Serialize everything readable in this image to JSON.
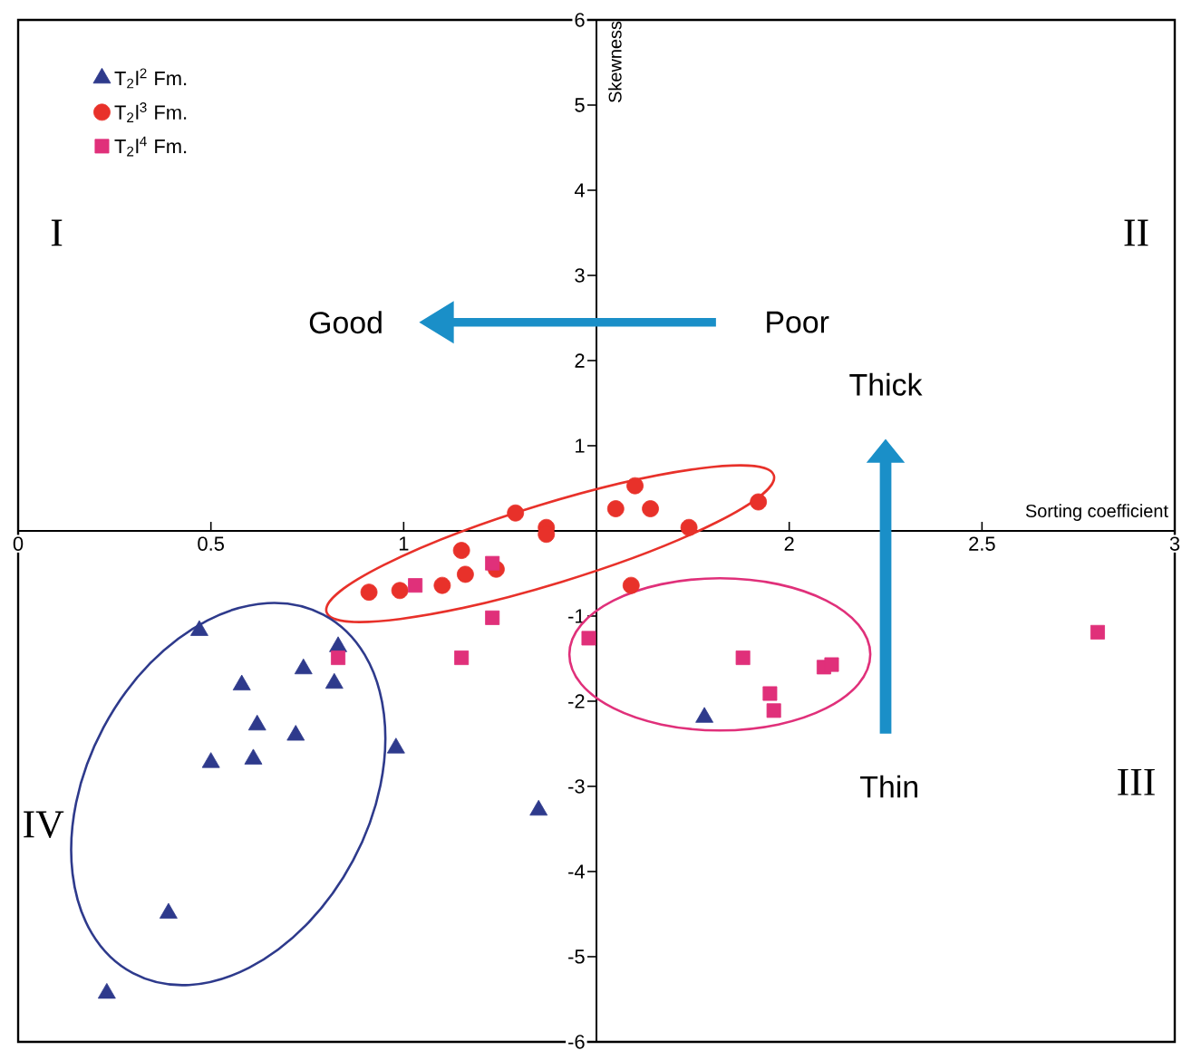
{
  "chart_data": {
    "type": "scatter",
    "xlabel": "Sorting coefficient",
    "ylabel": "Skewness",
    "xlim": [
      0,
      3
    ],
    "ylim": [
      -6,
      6
    ],
    "xticks": [
      0,
      0.5,
      1,
      2,
      2.5,
      3
    ],
    "yticks": [
      -6,
      -5,
      -4,
      -3,
      -2,
      -1,
      1,
      2,
      3,
      4,
      5,
      6
    ],
    "grid": false,
    "legend": "top left",
    "annotations": [
      "I",
      "II",
      "III",
      "IV",
      "Good",
      "Poor",
      "Thick",
      "Thin"
    ],
    "series": [
      {
        "name": "T$_{2}$l$^{2}$ Fm.",
        "color": "#2e3a8c",
        "marker": "triangle",
        "x": [
          0.47,
          0.83,
          0.74,
          0.58,
          0.82,
          0.62,
          0.72,
          0.5,
          0.61,
          0.98,
          1.35,
          0.39,
          0.23,
          1.78
        ],
        "values": [
          -1.17,
          -1.36,
          -1.62,
          -1.81,
          -1.79,
          -2.28,
          -2.4,
          -2.72,
          -2.68,
          -2.55,
          -3.28,
          -4.49,
          -5.43,
          -2.19
        ]
      },
      {
        "name": "T$_{2}$l$^{3}$ Fm.",
        "color": "#e8312a",
        "marker": "circle",
        "x": [
          0.91,
          0.99,
          1.1,
          1.16,
          1.15,
          1.24,
          1.29,
          1.37,
          1.37,
          1.55,
          1.6,
          1.64,
          1.74,
          1.92,
          1.59
        ],
        "values": [
          -0.72,
          -0.7,
          -0.64,
          -0.51,
          -0.23,
          -0.45,
          0.21,
          0.04,
          -0.04,
          0.26,
          0.53,
          0.26,
          0.04,
          0.34,
          -0.64
        ]
      },
      {
        "name": "T$_{2}$l$^{4}$ Fm.",
        "color": "#e0307a",
        "marker": "square",
        "x": [
          1.03,
          1.23,
          1.23,
          0.83,
          1.15,
          1.48,
          1.88,
          2.09,
          2.11,
          1.95,
          1.96,
          2.8
        ],
        "values": [
          -0.64,
          -0.38,
          -1.02,
          -1.49,
          -1.49,
          -1.26,
          -1.49,
          -1.6,
          -1.57,
          -1.91,
          -2.11,
          -1.19
        ]
      }
    ]
  }
}
